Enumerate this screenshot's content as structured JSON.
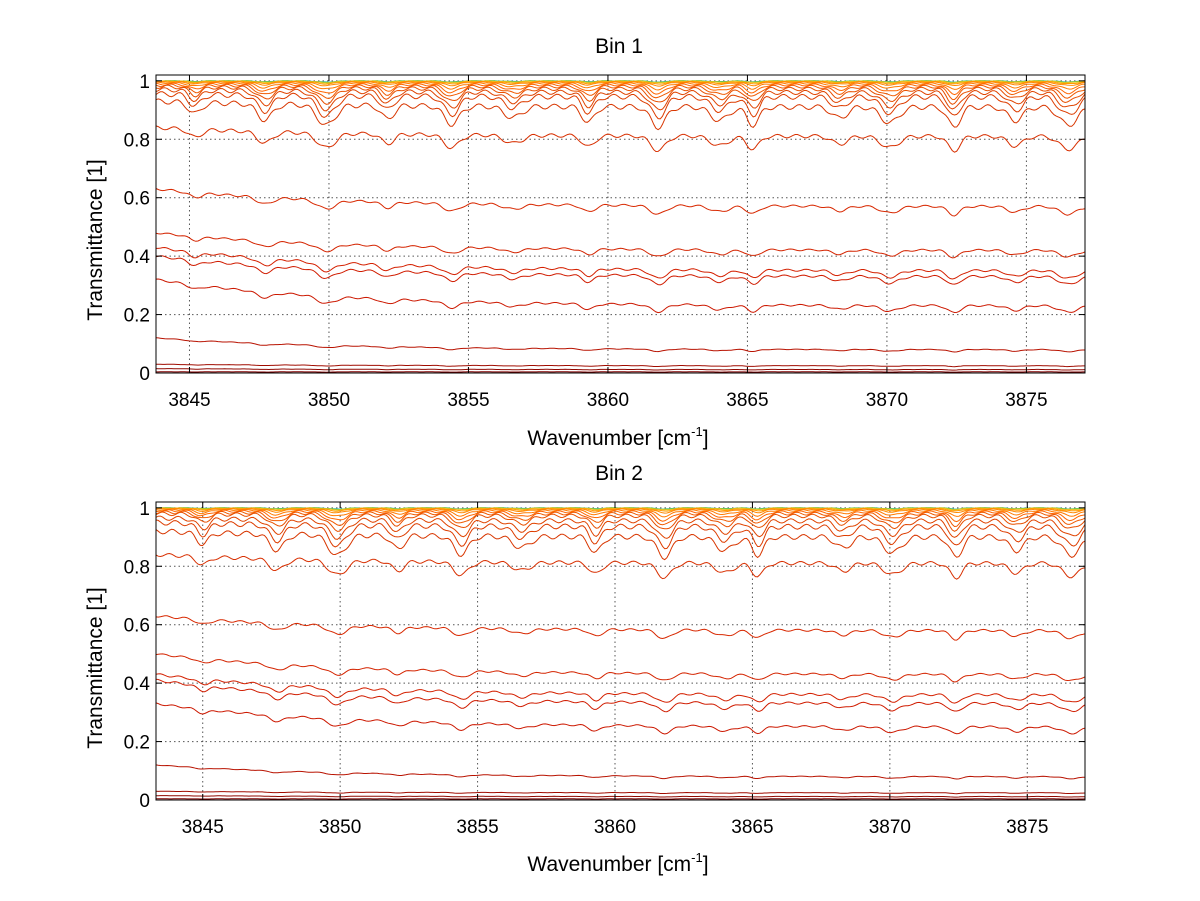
{
  "figure": {
    "background": "#ffffff",
    "axis_color": "#000000",
    "grid_color": "#555555"
  },
  "chart_data": [
    {
      "type": "line",
      "title": "Bin 1",
      "xlabel_text": "Wavenumber [cm",
      "xlabel_sup": "-1",
      "xlabel_end": "]",
      "ylabel": "Transmittance [1]",
      "xlim": [
        3843.8,
        3877.1
      ],
      "ylim": [
        0,
        1.02
      ],
      "xticks": [
        3845,
        3850,
        3855,
        3860,
        3865,
        3870,
        3875
      ],
      "yticks": [
        0,
        0.2,
        0.4,
        0.6,
        0.8,
        1
      ],
      "ytick_labels": [
        "0",
        "0.2",
        "0.4",
        "0.6",
        "0.8",
        "1"
      ],
      "grid": true,
      "grid_style": "dotted",
      "absorption_lines": [
        3845.2,
        3847.7,
        3849.9,
        3852.1,
        3854.4,
        3856.6,
        3859.3,
        3861.8,
        3864.0,
        3865.2,
        3868.3,
        3870.1,
        3872.4,
        3874.6,
        3876.5
      ],
      "series": [
        {
          "start": 1.0,
          "end": 1.0,
          "depth": 0.004,
          "color": "#1fb8d8"
        },
        {
          "start": 1.0,
          "end": 1.0,
          "depth": 0.005,
          "color": "#7ec82e"
        },
        {
          "start": 0.999,
          "end": 0.999,
          "depth": 0.006,
          "color": "#e8c21e"
        },
        {
          "start": 0.998,
          "end": 0.997,
          "depth": 0.008,
          "color": "#ff9a00"
        },
        {
          "start": 0.996,
          "end": 0.995,
          "depth": 0.012,
          "color": "#ff8800"
        },
        {
          "start": 0.993,
          "end": 0.991,
          "depth": 0.02,
          "color": "#ff7a00"
        },
        {
          "start": 0.989,
          "end": 0.986,
          "depth": 0.03,
          "color": "#ff6600"
        },
        {
          "start": 0.985,
          "end": 0.98,
          "depth": 0.04,
          "color": "#f05a00"
        },
        {
          "start": 0.98,
          "end": 0.972,
          "depth": 0.05,
          "color": "#e85000"
        },
        {
          "start": 0.97,
          "end": 0.96,
          "depth": 0.06,
          "color": "#e04400"
        },
        {
          "start": 0.955,
          "end": 0.945,
          "depth": 0.07,
          "color": "#dd3d00"
        },
        {
          "start": 0.93,
          "end": 0.91,
          "depth": 0.07,
          "color": "#d83600"
        },
        {
          "start": 0.84,
          "end": 0.81,
          "depth": 0.05,
          "color": "#d82f00"
        },
        {
          "start": 0.63,
          "end": 0.57,
          "depth": 0.03,
          "color": "#d82800"
        },
        {
          "start": 0.48,
          "end": 0.42,
          "depth": 0.025,
          "color": "#d42400"
        },
        {
          "start": 0.43,
          "end": 0.35,
          "depth": 0.03,
          "color": "#d42000"
        },
        {
          "start": 0.4,
          "end": 0.33,
          "depth": 0.03,
          "color": "#d01c00"
        },
        {
          "start": 0.32,
          "end": 0.23,
          "depth": 0.025,
          "color": "#cc1800"
        },
        {
          "start": 0.12,
          "end": 0.08,
          "depth": 0.008,
          "color": "#b81200"
        },
        {
          "start": 0.03,
          "end": 0.025,
          "depth": 0.003,
          "color": "#a00c00"
        },
        {
          "start": 0.015,
          "end": 0.012,
          "depth": 0.002,
          "color": "#900800"
        },
        {
          "start": 0.004,
          "end": 0.004,
          "depth": 0.001,
          "color": "#800000"
        }
      ]
    },
    {
      "type": "line",
      "title": "Bin 2",
      "xlabel_text": "Wavenumber [cm",
      "xlabel_sup": "-1",
      "xlabel_end": "]",
      "ylabel": "Transmittance [1]",
      "xlim": [
        3843.3,
        3877.1
      ],
      "ylim": [
        0,
        1.02
      ],
      "xticks": [
        3845,
        3850,
        3855,
        3860,
        3865,
        3870,
        3875
      ],
      "yticks": [
        0,
        0.2,
        0.4,
        0.6,
        0.8,
        1
      ],
      "ytick_labels": [
        "0",
        "0.2",
        "0.4",
        "0.6",
        "0.8",
        "1"
      ],
      "grid": true,
      "grid_style": "dotted",
      "absorption_lines": [
        3845.0,
        3847.7,
        3849.9,
        3852.1,
        3854.4,
        3856.6,
        3859.3,
        3861.8,
        3864.0,
        3865.2,
        3868.3,
        3870.1,
        3872.4,
        3874.6,
        3876.6
      ],
      "series": [
        {
          "start": 1.0,
          "end": 1.0,
          "depth": 0.004,
          "color": "#1fb8d8"
        },
        {
          "start": 1.0,
          "end": 1.0,
          "depth": 0.005,
          "color": "#7ec82e"
        },
        {
          "start": 0.999,
          "end": 0.999,
          "depth": 0.006,
          "color": "#e8c21e"
        },
        {
          "start": 0.998,
          "end": 0.997,
          "depth": 0.008,
          "color": "#ff9a00"
        },
        {
          "start": 0.996,
          "end": 0.995,
          "depth": 0.012,
          "color": "#ff8800"
        },
        {
          "start": 0.993,
          "end": 0.991,
          "depth": 0.02,
          "color": "#ff7a00"
        },
        {
          "start": 0.99,
          "end": 0.986,
          "depth": 0.03,
          "color": "#ff6600"
        },
        {
          "start": 0.985,
          "end": 0.98,
          "depth": 0.04,
          "color": "#f05a00"
        },
        {
          "start": 0.98,
          "end": 0.972,
          "depth": 0.05,
          "color": "#e85000"
        },
        {
          "start": 0.965,
          "end": 0.955,
          "depth": 0.06,
          "color": "#e04400"
        },
        {
          "start": 0.95,
          "end": 0.935,
          "depth": 0.07,
          "color": "#dd3d00"
        },
        {
          "start": 0.92,
          "end": 0.9,
          "depth": 0.07,
          "color": "#d83600"
        },
        {
          "start": 0.84,
          "end": 0.81,
          "depth": 0.05,
          "color": "#d82f00"
        },
        {
          "start": 0.63,
          "end": 0.58,
          "depth": 0.03,
          "color": "#d82800"
        },
        {
          "start": 0.5,
          "end": 0.43,
          "depth": 0.025,
          "color": "#d42400"
        },
        {
          "start": 0.43,
          "end": 0.36,
          "depth": 0.03,
          "color": "#d42000"
        },
        {
          "start": 0.41,
          "end": 0.33,
          "depth": 0.03,
          "color": "#d01c00"
        },
        {
          "start": 0.33,
          "end": 0.25,
          "depth": 0.025,
          "color": "#cc1800"
        },
        {
          "start": 0.12,
          "end": 0.08,
          "depth": 0.008,
          "color": "#b81200"
        },
        {
          "start": 0.03,
          "end": 0.025,
          "depth": 0.003,
          "color": "#a00c00"
        },
        {
          "start": 0.015,
          "end": 0.012,
          "depth": 0.002,
          "color": "#900800"
        },
        {
          "start": 0.004,
          "end": 0.004,
          "depth": 0.001,
          "color": "#800000"
        }
      ]
    }
  ]
}
